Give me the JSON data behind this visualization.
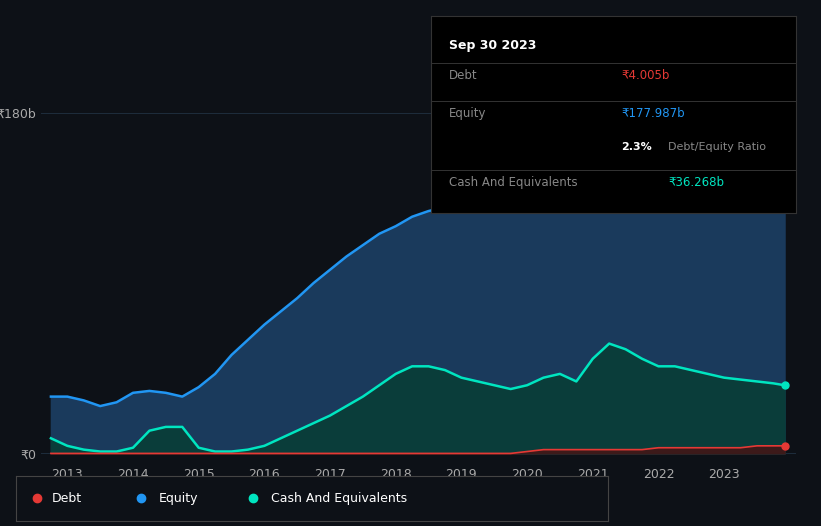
{
  "background_color": "#0d1117",
  "plot_bg_color": "#0d1117",
  "ylabel_180b": "₹180b",
  "ylabel_0": "₹0",
  "x_ticks": [
    2013,
    2014,
    2015,
    2016,
    2017,
    2018,
    2019,
    2020,
    2021,
    2022,
    2023
  ],
  "equity_color": "#2196f3",
  "equity_fill": "#1a3a5c",
  "cash_color": "#00e5c0",
  "cash_fill": "#0a3d3a",
  "debt_color": "#e53935",
  "debt_fill": "#3d1a1a",
  "grid_color": "#1e2d3d",
  "tooltip_border": "#333333",
  "legend_border": "#444444",
  "years": [
    2012.75,
    2013.0,
    2013.25,
    2013.5,
    2013.75,
    2014.0,
    2014.25,
    2014.5,
    2014.75,
    2015.0,
    2015.25,
    2015.5,
    2015.75,
    2016.0,
    2016.25,
    2016.5,
    2016.75,
    2017.0,
    2017.25,
    2017.5,
    2017.75,
    2018.0,
    2018.25,
    2018.5,
    2018.75,
    2019.0,
    2019.25,
    2019.5,
    2019.75,
    2020.0,
    2020.25,
    2020.5,
    2020.75,
    2021.0,
    2021.25,
    2021.5,
    2021.75,
    2022.0,
    2022.25,
    2022.5,
    2022.75,
    2023.0,
    2023.25,
    2023.5,
    2023.75,
    2023.92
  ],
  "equity_values": [
    30,
    30,
    28,
    25,
    27,
    32,
    33,
    32,
    30,
    35,
    42,
    52,
    60,
    68,
    75,
    82,
    90,
    97,
    104,
    110,
    116,
    120,
    125,
    128,
    130,
    133,
    136,
    138,
    140,
    143,
    148,
    153,
    157,
    160,
    163,
    165,
    167,
    169,
    170,
    171,
    172,
    173,
    174,
    175,
    177,
    178
  ],
  "cash_values": [
    8,
    4,
    2,
    1,
    1,
    3,
    12,
    14,
    14,
    3,
    1,
    1,
    2,
    4,
    8,
    12,
    16,
    20,
    25,
    30,
    36,
    42,
    46,
    46,
    44,
    40,
    38,
    36,
    34,
    36,
    40,
    42,
    38,
    50,
    58,
    55,
    50,
    46,
    46,
    44,
    42,
    40,
    39,
    38,
    37,
    36
  ],
  "debt_values": [
    0,
    0,
    0,
    0,
    0,
    0,
    0,
    0,
    0,
    0,
    0,
    0,
    0,
    0,
    0,
    0,
    0,
    0,
    0,
    0,
    0,
    0,
    0,
    0,
    0,
    0,
    0,
    0,
    0,
    1,
    2,
    2,
    2,
    2,
    2,
    2,
    2,
    3,
    3,
    3,
    3,
    3,
    3,
    4,
    4,
    4
  ]
}
